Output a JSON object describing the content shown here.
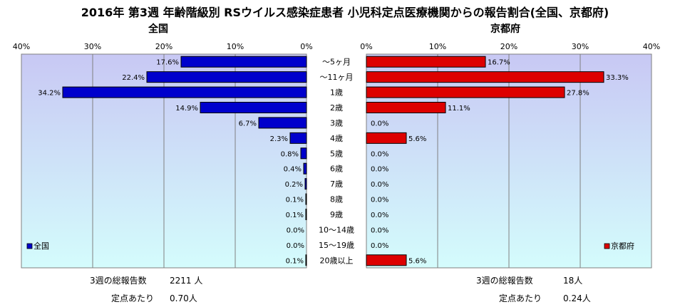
{
  "title": "2016年 第3週 年齢階級別 RSウイルス感染症患者 小児科定点医療機関からの報告割合(全国、京都府)",
  "left_panel": {
    "title": "全国",
    "legend": "全国",
    "total_label": "3週の総報告数",
    "total_value": "2211 人",
    "per_site_label": "定点あたり",
    "per_site_value": "0.70人"
  },
  "right_panel": {
    "title": "京都府",
    "legend": "京都府",
    "total_label": "3週の総報告数",
    "total_value": "18人",
    "per_site_label": "定点あたり",
    "per_site_value": "0.24人"
  },
  "colors": {
    "national_bar": "#0000cc",
    "kyoto_bar": "#dd0000",
    "plot_gradient_top": "#c8c8f4",
    "plot_gradient_bottom": "#d4fcfc"
  },
  "chart_data": [
    {
      "type": "bar",
      "orientation": "horizontal",
      "direction": "right-to-left",
      "title": "全国",
      "categories": [
        "～5ヶ月",
        "～11ヶ月",
        "1歳",
        "2歳",
        "3歳",
        "4歳",
        "5歳",
        "6歳",
        "7歳",
        "8歳",
        "9歳",
        "10～14歳",
        "15～19歳",
        "20歳以上"
      ],
      "series": [
        {
          "name": "全国",
          "values": [
            17.6,
            22.4,
            34.2,
            14.9,
            6.7,
            2.3,
            0.8,
            0.4,
            0.2,
            0.1,
            0.1,
            0.0,
            0.0,
            0.1
          ]
        }
      ],
      "xlim": [
        0,
        40
      ],
      "xticks": [
        "40%",
        "30%",
        "20%",
        "10%",
        "0%"
      ],
      "grid": true,
      "legend_position": "bottom-left"
    },
    {
      "type": "bar",
      "orientation": "horizontal",
      "direction": "left-to-right",
      "title": "京都府",
      "categories": [
        "～5ヶ月",
        "～11ヶ月",
        "1歳",
        "2歳",
        "3歳",
        "4歳",
        "5歳",
        "6歳",
        "7歳",
        "8歳",
        "9歳",
        "10～14歳",
        "15～19歳",
        "20歳以上"
      ],
      "series": [
        {
          "name": "京都府",
          "values": [
            16.7,
            33.3,
            27.8,
            11.1,
            0.0,
            5.6,
            0.0,
            0.0,
            0.0,
            0.0,
            0.0,
            0.0,
            0.0,
            5.6
          ]
        }
      ],
      "xlim": [
        0,
        40
      ],
      "xticks": [
        "0%",
        "10%",
        "20%",
        "30%",
        "40%"
      ],
      "grid": true,
      "legend_position": "bottom-right"
    }
  ]
}
